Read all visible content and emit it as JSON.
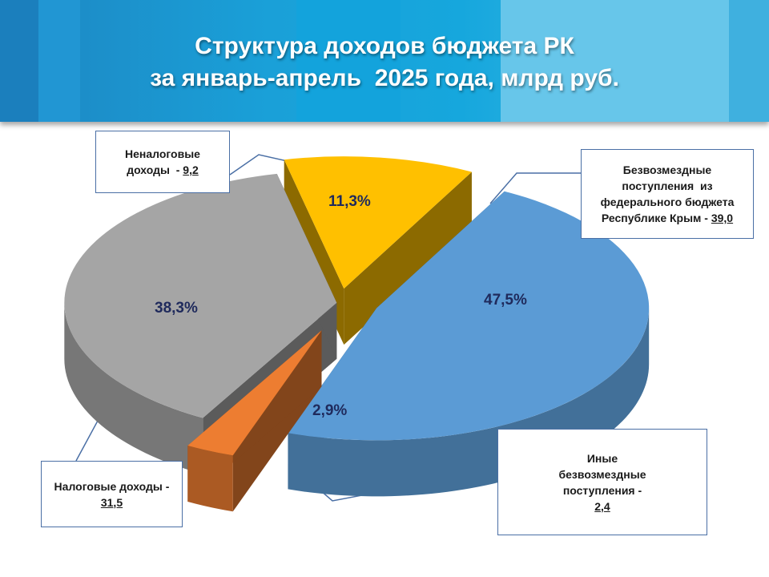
{
  "title_line1": "Структура доходов бюджета РК",
  "title_line2": "за январь-апрель  2025 года, млрд руб.",
  "chart_data": {
    "type": "pie",
    "title": "Структура доходов бюджета РК за январь-апрель 2025 года, млрд руб.",
    "series": [
      {
        "name": "Безвозмездные поступления из федерального бюджета Республике Крым",
        "value": 39.0,
        "value_label": "39,0",
        "percent": 47.5,
        "percent_label": "47,5%",
        "color": "#5b9bd5"
      },
      {
        "name": "Иные безвозмездные поступления",
        "value": 2.4,
        "value_label": "2,4",
        "percent": 2.9,
        "percent_label": "2,9%",
        "color": "#ed7d31"
      },
      {
        "name": "Налоговые доходы",
        "value": 31.5,
        "value_label": "31,5",
        "percent": 38.3,
        "percent_label": "38,3%",
        "color": "#a5a5a5"
      },
      {
        "name": "Неналоговые доходы",
        "value": 9.2,
        "value_label": "9,2",
        "percent": 11.3,
        "percent_label": "11,3%",
        "color": "#ffc000"
      }
    ]
  },
  "callouts": {
    "federal": {
      "line1": "Безвозмездные",
      "line2": "поступления  из",
      "line3": "федерального бюджета",
      "line4": "Республике Крым - ",
      "value": "39,0"
    },
    "other": {
      "line1": "Иные",
      "line2": "безвозмездные",
      "line3": "поступления -",
      "value": "2,4"
    },
    "tax": {
      "line1": "Налоговые доходы -",
      "value": "31,5"
    },
    "nontax": {
      "line1": "Неналоговые",
      "line2": "доходы  - ",
      "value": "9,2"
    }
  }
}
